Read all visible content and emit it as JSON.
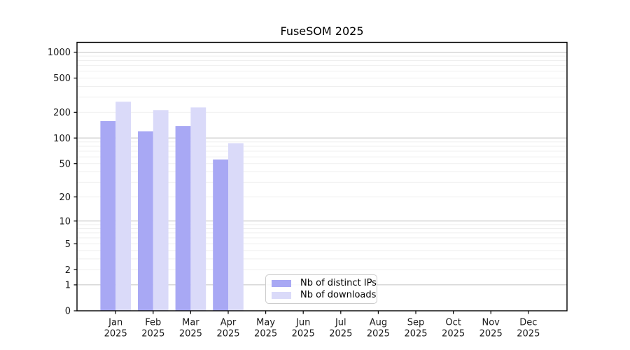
{
  "chart_data": {
    "type": "bar",
    "title": "FuseSOM 2025",
    "x_tick_months": [
      "Jan",
      "Feb",
      "Mar",
      "Apr",
      "May",
      "Jun",
      "Jul",
      "Aug",
      "Sep",
      "Oct",
      "Nov",
      "Dec"
    ],
    "x_tick_year": "2025",
    "y_ticks": [
      0,
      1,
      2,
      5,
      10,
      20,
      50,
      100,
      200,
      500,
      1000
    ],
    "y_scale": "log10(value+1)",
    "y_axis_top_value": 1300,
    "grid": true,
    "series": [
      {
        "name": "Nb of distinct IPs",
        "color": "#a8a8f4",
        "values": [
          158,
          120,
          138,
          56,
          null,
          null,
          null,
          null,
          null,
          null,
          null,
          null
        ]
      },
      {
        "name": "Nb of downloads",
        "color": "#dadaf9",
        "values": [
          265,
          212,
          228,
          87,
          null,
          null,
          null,
          null,
          null,
          null,
          null,
          null
        ]
      }
    ],
    "legend": {
      "position": "inside bottom-center"
    }
  },
  "style_colors": {
    "grid_major": "#c3c3c3",
    "grid_minor": "#efefef",
    "spine": "#000000",
    "tick_text": "#1a1a1a"
  }
}
